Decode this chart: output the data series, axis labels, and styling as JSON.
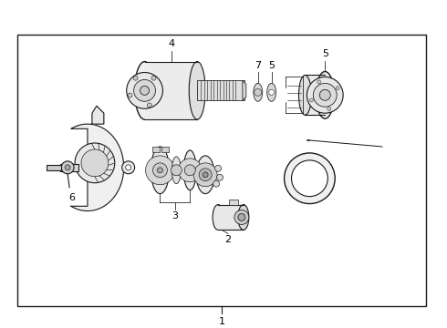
{
  "bg_color": "#ffffff",
  "border_color": "#000000",
  "line_color": "#1a1a1a",
  "border_lw": 1.2,
  "fig_width": 4.9,
  "fig_height": 3.6,
  "dpi": 100,
  "label_1": "1",
  "label_2": "2",
  "label_3": "3",
  "label_4": "4",
  "label_5a": "5",
  "label_5b": "5",
  "label_6": "6",
  "label_7": "7",
  "font_size": 8
}
